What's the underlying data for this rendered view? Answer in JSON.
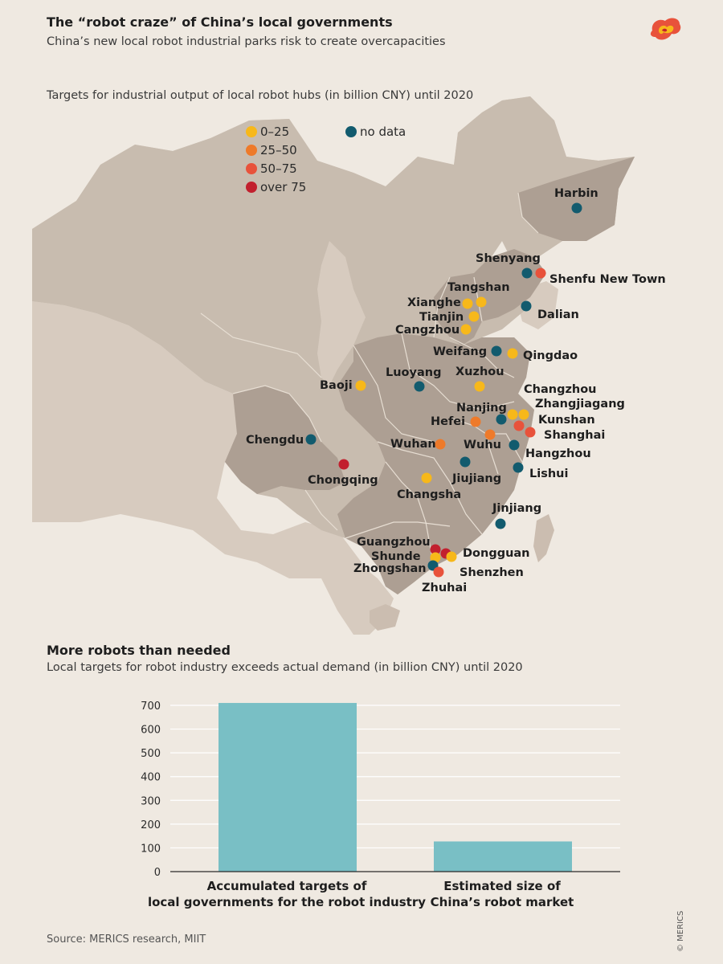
{
  "header": {
    "title": "The “robot craze” of China’s local governments",
    "subtitle": "China’s new local robot industrial parks risk to create overcapacities"
  },
  "map": {
    "caption": "Targets for industrial output of local robot hubs (in billion CNY) until 2020",
    "legend": [
      {
        "label": "0–25",
        "color": "#f7b81a"
      },
      {
        "label": "25–50",
        "color": "#ee7a2a"
      },
      {
        "label": "50–75",
        "color": "#e8523b"
      },
      {
        "label": "over 75",
        "color": "#c2202e"
      },
      {
        "label": "no data",
        "color": "#125b6e"
      }
    ],
    "cities": [
      {
        "name": "Harbin",
        "category": "no data"
      },
      {
        "name": "Shenyang",
        "category": "no data"
      },
      {
        "name": "Shenfu New Town",
        "category": "50–75"
      },
      {
        "name": "Dalian",
        "category": "no data"
      },
      {
        "name": "Tangshan",
        "category": "0–25"
      },
      {
        "name": "Xianghe",
        "category": "0–25"
      },
      {
        "name": "Tianjin",
        "category": "0–25"
      },
      {
        "name": "Cangzhou",
        "category": "0–25"
      },
      {
        "name": "Weifang",
        "category": "no data"
      },
      {
        "name": "Qingdao",
        "category": "0–25"
      },
      {
        "name": "Luoyang",
        "category": "no data"
      },
      {
        "name": "Xuzhou",
        "category": "0–25"
      },
      {
        "name": "Baoji",
        "category": "0–25"
      },
      {
        "name": "Changzhou",
        "category": "0–25"
      },
      {
        "name": "Zhangjiagang",
        "category": "0–25"
      },
      {
        "name": "Nanjing",
        "category": "no data"
      },
      {
        "name": "Kunshan",
        "category": "50–75"
      },
      {
        "name": "Hefei",
        "category": "25–50"
      },
      {
        "name": "Shanghai",
        "category": "50–75"
      },
      {
        "name": "Wuhu",
        "category": "25–50"
      },
      {
        "name": "Wuhan",
        "category": "25–50"
      },
      {
        "name": "Hangzhou",
        "category": "no data"
      },
      {
        "name": "Chengdu",
        "category": "no data"
      },
      {
        "name": "Jiujiang",
        "category": "no data"
      },
      {
        "name": "Lishui",
        "category": "no data"
      },
      {
        "name": "Chongqing",
        "category": "over 75"
      },
      {
        "name": "Changsha",
        "category": "0–25"
      },
      {
        "name": "Jinjiang",
        "category": "no data"
      },
      {
        "name": "Guangzhou",
        "category": "over 75"
      },
      {
        "name": "Dongguan",
        "category": "over 75"
      },
      {
        "name": "Shunde",
        "category": "0–25"
      },
      {
        "name": "Shenzhen",
        "category": "0–25"
      },
      {
        "name": "Zhongshan",
        "category": "no data"
      },
      {
        "name": "Zhuhai",
        "category": "50–75"
      }
    ]
  },
  "chart_data": {
    "type": "bar",
    "title": "More robots than needed",
    "subtitle": "Local targets for robot industry exceeds actual demand (in billion CNY) until 2020",
    "categories": [
      "Accumulated targets of\nlocal governments for the robot industry",
      "Estimated size of\nChina’s robot market"
    ],
    "values": [
      710,
      127
    ],
    "ylim": [
      0,
      700
    ],
    "yticks": [
      0,
      100,
      200,
      300,
      400,
      500,
      600,
      700
    ],
    "grid": true,
    "bar_color": "#79bfc5"
  },
  "footer": {
    "source": "Source: MERICS research, MIIT",
    "copyright": "© MERICS"
  }
}
